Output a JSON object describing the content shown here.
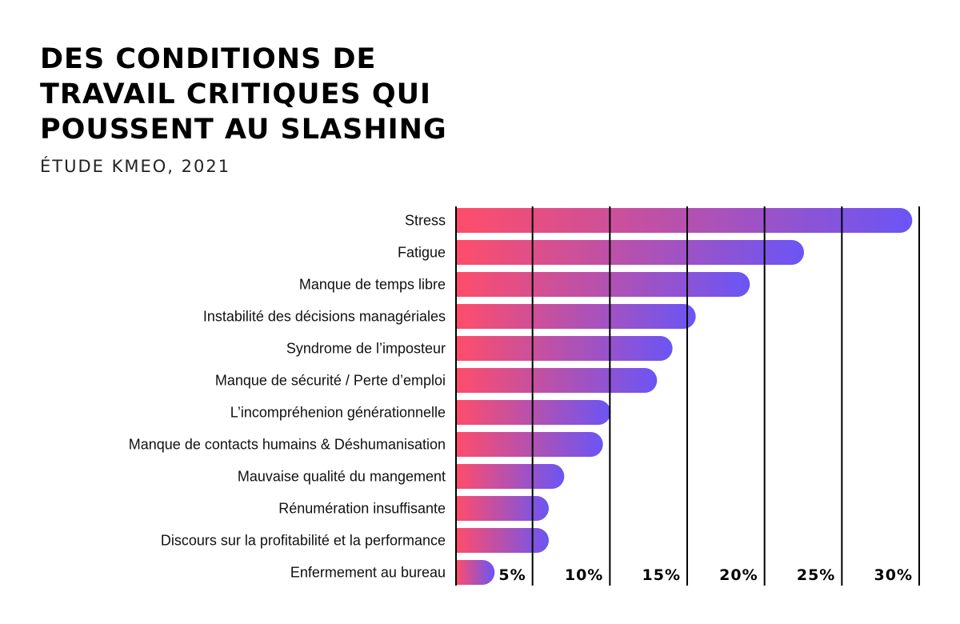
{
  "header": {
    "title_lines": [
      "DES CONDITIONS DE",
      "TRAVAIL CRITIQUES QUI",
      "POUSSENT AU SLASHING"
    ],
    "subtitle": "ÉTUDE KMEO, 2021"
  },
  "colors": {
    "gradient_start": "#ff4d6a",
    "gradient_end": "#6b55f5",
    "axis_line": "#000000"
  },
  "chart_data": {
    "type": "bar",
    "orientation": "horizontal",
    "title": "DES CONDITIONS DE TRAVAIL CRITIQUES QUI POUSSENT AU SLASHING",
    "subtitle": "ÉTUDE KMEO, 2021",
    "categories": [
      "Stress",
      "Fatigue",
      "Manque de temps libre",
      "Instabilité des décisions managériales",
      "Syndrome de l’imposteur",
      "Manque de sécurité / Perte d’emploi",
      "L’incompréhenion générationnelle",
      "Manque de contacts humains & Déshumanisation",
      "Mauvaise qualité du mangement",
      "Rénumération insuffisante",
      "Discours sur la profitabilité et la performance",
      "Enfermement au bureau"
    ],
    "values": [
      29.5,
      22.5,
      19,
      15.5,
      14,
      13,
      10,
      9.5,
      7,
      6,
      6,
      2.5
    ],
    "unit": "%",
    "xlim": [
      0,
      30
    ],
    "ticks": [
      5,
      10,
      15,
      20,
      25,
      30
    ],
    "tick_labels": [
      "5%",
      "10%",
      "15%",
      "20%",
      "25%",
      "30%"
    ],
    "grid": true,
    "xlabel": "",
    "ylabel": ""
  }
}
